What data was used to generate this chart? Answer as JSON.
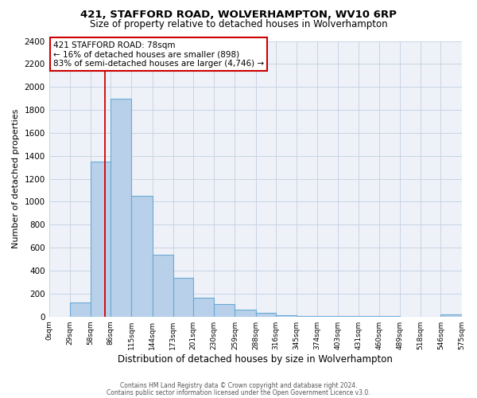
{
  "title": "421, STAFFORD ROAD, WOLVERHAMPTON, WV10 6RP",
  "subtitle": "Size of property relative to detached houses in Wolverhampton",
  "xlabel": "Distribution of detached houses by size in Wolverhampton",
  "ylabel": "Number of detached properties",
  "bin_edges": [
    0,
    29,
    58,
    86,
    115,
    144,
    173,
    201,
    230,
    259,
    288,
    316,
    345,
    374,
    403,
    431,
    460,
    489,
    518,
    546,
    575
  ],
  "bin_counts": [
    0,
    125,
    1350,
    1900,
    1050,
    540,
    335,
    165,
    110,
    60,
    35,
    15,
    5,
    5,
    3,
    3,
    2,
    0,
    0,
    20
  ],
  "bar_color": "#b8d0ea",
  "bar_edge_color": "#6aaad4",
  "vline_x": 78,
  "vline_color": "#cc0000",
  "annotation_line1": "421 STAFFORD ROAD: 78sqm",
  "annotation_line2": "← 16% of detached houses are smaller (898)",
  "annotation_line3": "83% of semi-detached houses are larger (4,746) →",
  "annotation_box_color": "#ffffff",
  "annotation_box_edge": "#cc0000",
  "ylim": [
    0,
    2400
  ],
  "yticks": [
    0,
    200,
    400,
    600,
    800,
    1000,
    1200,
    1400,
    1600,
    1800,
    2000,
    2200,
    2400
  ],
  "xtick_labels": [
    "0sqm",
    "29sqm",
    "58sqm",
    "86sqm",
    "115sqm",
    "144sqm",
    "173sqm",
    "201sqm",
    "230sqm",
    "259sqm",
    "288sqm",
    "316sqm",
    "345sqm",
    "374sqm",
    "403sqm",
    "431sqm",
    "460sqm",
    "489sqm",
    "518sqm",
    "546sqm",
    "575sqm"
  ],
  "footer1": "Contains HM Land Registry data © Crown copyright and database right 2024.",
  "footer2": "Contains public sector information licensed under the Open Government Licence v3.0.",
  "grid_color": "#c8d4e4",
  "bg_color": "#eef2f8",
  "title_fontsize": 9.5,
  "subtitle_fontsize": 8.5
}
